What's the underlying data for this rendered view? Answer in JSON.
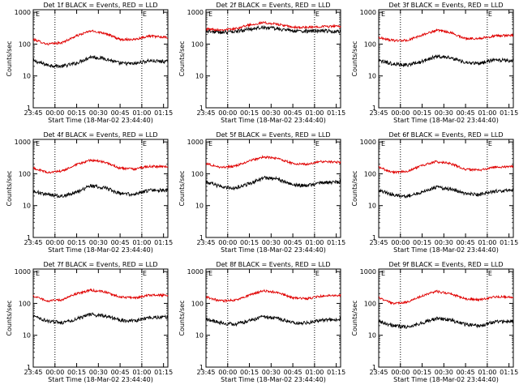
{
  "colors": {
    "events": "#000000",
    "lld": "#e00000",
    "axis": "#000000"
  },
  "common": {
    "ylabel": "Counts/sec",
    "xlabel": "Start Time (18-Mar-02 23:44:40)",
    "xticks": [
      "23:45",
      "00:00",
      "00:15",
      "00:30",
      "00:45",
      "01:00",
      "01:15"
    ],
    "yticks": [
      "1",
      "10",
      "100",
      "1000"
    ],
    "marker_label": "E"
  },
  "chart_data": [
    {
      "type": "line",
      "title": "Det 1f BLACK = Events, RED = LLD",
      "ylabel": "Counts/sec",
      "xlabel": "Start Time (18-Mar-02 23:44:40)",
      "x_range_min": [
        0.3,
        93.3
      ],
      "ylim": [
        1,
        1200
      ],
      "yscale": "log",
      "dotted_vlines_min": [
        15.3,
        75.3
      ],
      "series": [
        {
          "key": "events",
          "points": [
            [
              0.3,
              30
            ],
            [
              10,
              22
            ],
            [
              20,
              20
            ],
            [
              30,
              25
            ],
            [
              40,
              40
            ],
            [
              50,
              35
            ],
            [
              60,
              25
            ],
            [
              70,
              24
            ],
            [
              80,
              30
            ],
            [
              93.3,
              28
            ]
          ]
        },
        {
          "key": "lld",
          "points": [
            [
              0.3,
              140
            ],
            [
              10,
              100
            ],
            [
              20,
              110
            ],
            [
              30,
              180
            ],
            [
              40,
              260
            ],
            [
              50,
              220
            ],
            [
              60,
              140
            ],
            [
              70,
              140
            ],
            [
              80,
              180
            ],
            [
              93.3,
              160
            ]
          ]
        }
      ]
    },
    {
      "type": "line",
      "title": "Det 2f BLACK = Events, RED = LLD",
      "ylabel": "Counts/sec",
      "xlabel": "Start Time (18-Mar-02 23:44:40)",
      "x_range_min": [
        0.3,
        93.3
      ],
      "ylim": [
        1,
        1200
      ],
      "yscale": "log",
      "dotted_vlines_min": [
        15.3,
        75.3
      ],
      "series": [
        {
          "key": "events",
          "points": [
            [
              0.3,
              260
            ],
            [
              10,
              230
            ],
            [
              20,
              250
            ],
            [
              30,
              290
            ],
            [
              40,
              340
            ],
            [
              50,
              300
            ],
            [
              60,
              260
            ],
            [
              70,
              250
            ],
            [
              80,
              260
            ],
            [
              93.3,
              250
            ]
          ]
        },
        {
          "key": "lld",
          "points": [
            [
              0.3,
              300
            ],
            [
              10,
              280
            ],
            [
              20,
              300
            ],
            [
              30,
              400
            ],
            [
              40,
              470
            ],
            [
              50,
              420
            ],
            [
              60,
              340
            ],
            [
              70,
              330
            ],
            [
              80,
              360
            ],
            [
              93.3,
              360
            ]
          ]
        }
      ]
    },
    {
      "type": "line",
      "title": "Det 3f BLACK = Events, RED = LLD",
      "ylabel": "Counts/sec",
      "xlabel": "Start Time (18-Mar-02 23:44:40)",
      "x_range_min": [
        0.3,
        93.3
      ],
      "ylim": [
        1,
        1200
      ],
      "yscale": "log",
      "dotted_vlines_min": [
        15.3,
        75.3
      ],
      "series": [
        {
          "key": "events",
          "points": [
            [
              0.3,
              30
            ],
            [
              10,
              24
            ],
            [
              20,
              22
            ],
            [
              30,
              28
            ],
            [
              40,
              42
            ],
            [
              50,
              38
            ],
            [
              60,
              26
            ],
            [
              70,
              25
            ],
            [
              80,
              32
            ],
            [
              93.3,
              30
            ]
          ]
        },
        {
          "key": "lld",
          "points": [
            [
              0.3,
              160
            ],
            [
              10,
              130
            ],
            [
              20,
              130
            ],
            [
              30,
              190
            ],
            [
              40,
              270
            ],
            [
              50,
              230
            ],
            [
              60,
              150
            ],
            [
              70,
              150
            ],
            [
              80,
              180
            ],
            [
              93.3,
              190
            ]
          ]
        }
      ]
    },
    {
      "type": "line",
      "title": "Det 4f BLACK = Events, RED = LLD",
      "ylabel": "Counts/sec",
      "xlabel": "Start Time (18-Mar-02 23:44:40)",
      "x_range_min": [
        0.3,
        93.3
      ],
      "ylim": [
        1,
        1200
      ],
      "yscale": "log",
      "dotted_vlines_min": [
        15.3,
        75.3
      ],
      "series": [
        {
          "key": "events",
          "points": [
            [
              0.3,
              28
            ],
            [
              10,
              22
            ],
            [
              20,
              20
            ],
            [
              30,
              26
            ],
            [
              40,
              42
            ],
            [
              50,
              36
            ],
            [
              60,
              24
            ],
            [
              70,
              22
            ],
            [
              80,
              30
            ],
            [
              93.3,
              30
            ]
          ]
        },
        {
          "key": "lld",
          "points": [
            [
              0.3,
              150
            ],
            [
              10,
              110
            ],
            [
              20,
              120
            ],
            [
              30,
              190
            ],
            [
              40,
              270
            ],
            [
              50,
              230
            ],
            [
              60,
              150
            ],
            [
              70,
              140
            ],
            [
              80,
              170
            ],
            [
              93.3,
              170
            ]
          ]
        }
      ]
    },
    {
      "type": "line",
      "title": "Det 5f BLACK = Events, RED = LLD",
      "ylabel": "Counts/sec",
      "xlabel": "Start Time (18-Mar-02 23:44:40)",
      "x_range_min": [
        0.3,
        93.3
      ],
      "ylim": [
        1,
        1200
      ],
      "yscale": "log",
      "dotted_vlines_min": [
        15.3,
        75.3
      ],
      "series": [
        {
          "key": "events",
          "points": [
            [
              0.3,
              55
            ],
            [
              10,
              40
            ],
            [
              20,
              35
            ],
            [
              30,
              48
            ],
            [
              40,
              75
            ],
            [
              50,
              68
            ],
            [
              60,
              45
            ],
            [
              70,
              42
            ],
            [
              80,
              52
            ],
            [
              93.3,
              55
            ]
          ]
        },
        {
          "key": "lld",
          "points": [
            [
              0.3,
              210
            ],
            [
              10,
              160
            ],
            [
              20,
              170
            ],
            [
              30,
              250
            ],
            [
              40,
              340
            ],
            [
              50,
              300
            ],
            [
              60,
              210
            ],
            [
              70,
              200
            ],
            [
              80,
              240
            ],
            [
              93.3,
              230
            ]
          ]
        }
      ]
    },
    {
      "type": "line",
      "title": "Det 6f BLACK = Events, RED = LLD",
      "ylabel": "Counts/sec",
      "xlabel": "Start Time (18-Mar-02 23:44:40)",
      "x_range_min": [
        0.3,
        93.3
      ],
      "ylim": [
        1,
        1200
      ],
      "yscale": "log",
      "dotted_vlines_min": [
        15.3,
        75.3
      ],
      "series": [
        {
          "key": "events",
          "points": [
            [
              0.3,
              30
            ],
            [
              10,
              22
            ],
            [
              20,
              20
            ],
            [
              30,
              26
            ],
            [
              40,
              38
            ],
            [
              50,
              32
            ],
            [
              60,
              24
            ],
            [
              70,
              22
            ],
            [
              80,
              28
            ],
            [
              93.3,
              30
            ]
          ]
        },
        {
          "key": "lld",
          "points": [
            [
              0.3,
              160
            ],
            [
              10,
              110
            ],
            [
              20,
              120
            ],
            [
              30,
              180
            ],
            [
              40,
              240
            ],
            [
              50,
              210
            ],
            [
              60,
              140
            ],
            [
              70,
              130
            ],
            [
              80,
              160
            ],
            [
              93.3,
              170
            ]
          ]
        }
      ]
    },
    {
      "type": "line",
      "title": "Det 7f BLACK = Events, RED = LLD",
      "ylabel": "Counts/sec",
      "xlabel": "Start Time (18-Mar-02 23:44:40)",
      "x_range_min": [
        0.3,
        93.3
      ],
      "ylim": [
        1,
        1200
      ],
      "yscale": "log",
      "dotted_vlines_min": [
        15.3,
        75.3
      ],
      "series": [
        {
          "key": "events",
          "points": [
            [
              0.3,
              40
            ],
            [
              10,
              28
            ],
            [
              20,
              25
            ],
            [
              30,
              32
            ],
            [
              40,
              45
            ],
            [
              50,
              40
            ],
            [
              60,
              30
            ],
            [
              70,
              28
            ],
            [
              80,
              36
            ],
            [
              93.3,
              38
            ]
          ]
        },
        {
          "key": "lld",
          "points": [
            [
              0.3,
              170
            ],
            [
              10,
              120
            ],
            [
              20,
              130
            ],
            [
              30,
              200
            ],
            [
              40,
              260
            ],
            [
              50,
              230
            ],
            [
              60,
              160
            ],
            [
              70,
              150
            ],
            [
              80,
              180
            ],
            [
              93.3,
              180
            ]
          ]
        }
      ]
    },
    {
      "type": "line",
      "title": "Det 8f BLACK = Events, RED = LLD",
      "ylabel": "Counts/sec",
      "xlabel": "Start Time (18-Mar-02 23:44:40)",
      "x_range_min": [
        0.3,
        93.3
      ],
      "ylim": [
        1,
        1200
      ],
      "yscale": "log",
      "dotted_vlines_min": [
        15.3,
        75.3
      ],
      "series": [
        {
          "key": "events",
          "points": [
            [
              0.3,
              32
            ],
            [
              10,
              25
            ],
            [
              20,
              22
            ],
            [
              30,
              28
            ],
            [
              40,
              38
            ],
            [
              50,
              34
            ],
            [
              60,
              25
            ],
            [
              70,
              24
            ],
            [
              80,
              30
            ],
            [
              93.3,
              32
            ]
          ]
        },
        {
          "key": "lld",
          "points": [
            [
              0.3,
              160
            ],
            [
              10,
              120
            ],
            [
              20,
              125
            ],
            [
              30,
              180
            ],
            [
              40,
              250
            ],
            [
              50,
              220
            ],
            [
              60,
              150
            ],
            [
              70,
              140
            ],
            [
              80,
              170
            ],
            [
              93.3,
              180
            ]
          ]
        }
      ]
    },
    {
      "type": "line",
      "title": "Det 9f BLACK = Events, RED = LLD",
      "ylabel": "Counts/sec",
      "xlabel": "Start Time (18-Mar-02 23:44:40)",
      "x_range_min": [
        0.3,
        93.3
      ],
      "ylim": [
        1,
        1200
      ],
      "yscale": "log",
      "dotted_vlines_min": [
        15.3,
        75.3
      ],
      "series": [
        {
          "key": "events",
          "points": [
            [
              0.3,
              28
            ],
            [
              10,
              20
            ],
            [
              20,
              18
            ],
            [
              30,
              24
            ],
            [
              40,
              34
            ],
            [
              50,
              30
            ],
            [
              60,
              22
            ],
            [
              70,
              20
            ],
            [
              80,
              26
            ],
            [
              93.3,
              28
            ]
          ]
        },
        {
          "key": "lld",
          "points": [
            [
              0.3,
              150
            ],
            [
              10,
              100
            ],
            [
              20,
              110
            ],
            [
              30,
              170
            ],
            [
              40,
              240
            ],
            [
              50,
              200
            ],
            [
              60,
              140
            ],
            [
              70,
              130
            ],
            [
              80,
              160
            ],
            [
              93.3,
              160
            ]
          ]
        }
      ]
    }
  ]
}
